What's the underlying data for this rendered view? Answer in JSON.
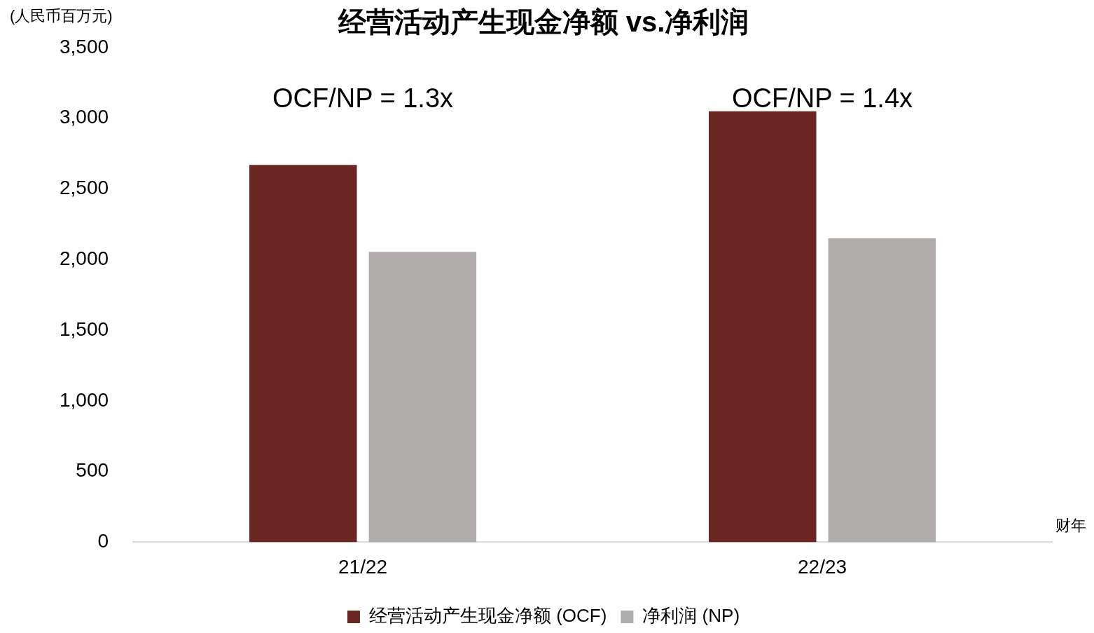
{
  "chart_data": {
    "type": "bar",
    "title": "经营活动产生现金净额 vs.净利润",
    "ylabel": "(人民币百万元)",
    "xlabel": "财年",
    "categories": [
      "21/22",
      "22/23"
    ],
    "series": [
      {
        "name": "经营活动产生现金净额 (OCF)",
        "color": "#6b2523",
        "values": [
          2670,
          3050
        ]
      },
      {
        "name": "净利润 (NP)",
        "color": "#b0acab",
        "values": [
          2055,
          2150
        ]
      }
    ],
    "ylim": [
      0,
      3500
    ],
    "yticks": [
      0,
      500,
      {
        "value": 1000,
        "label": "1,000"
      },
      {
        "value": 1500,
        "label": "1,500"
      },
      {
        "value": 2000,
        "label": "2,000"
      },
      {
        "value": 2500,
        "label": "2,500"
      },
      {
        "value": 3000,
        "label": "3,000"
      },
      {
        "value": 3500,
        "label": "3,500"
      }
    ],
    "annotations": [
      "OCF/NP = 1.3x",
      "OCF/NP = 1.4x"
    ],
    "grid": false,
    "legend": "bottom"
  }
}
